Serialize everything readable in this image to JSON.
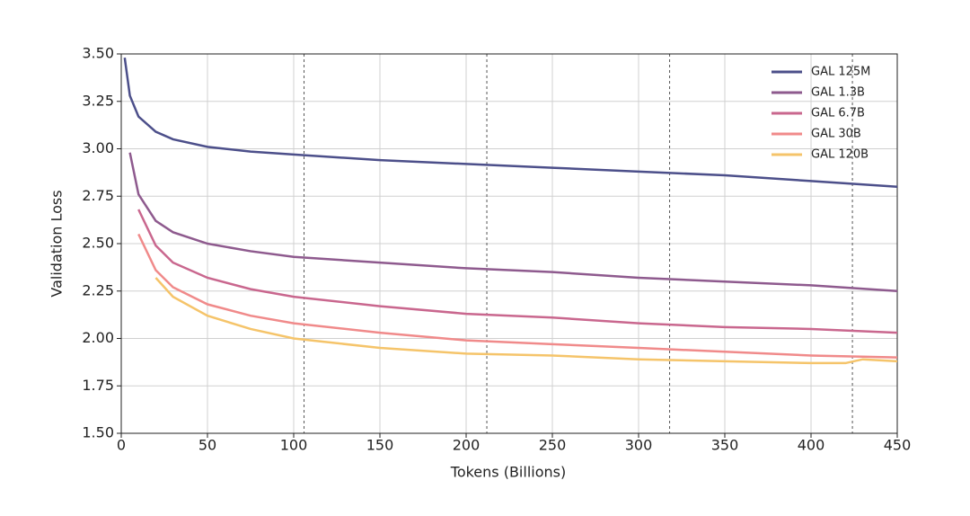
{
  "chart_data": {
    "type": "line",
    "x_label": "Tokens (Billions)",
    "y_label": "Validation Loss",
    "xlim": [
      0,
      450
    ],
    "xticks": [
      0,
      50,
      100,
      150,
      200,
      250,
      300,
      350,
      400,
      450
    ],
    "ylim": [
      1.5,
      3.5
    ],
    "yticks": [
      {
        "value": 1.5,
        "label": "1.50"
      },
      {
        "value": 1.75,
        "label": "1.75"
      },
      {
        "value": 2,
        "label": "2.00"
      },
      {
        "value": 2.25,
        "label": "2.25"
      },
      {
        "value": 2.5,
        "label": "2.50"
      },
      {
        "value": 2.75,
        "label": "2.75"
      },
      {
        "value": 3,
        "label": "3.00"
      },
      {
        "value": 3.25,
        "label": "3.25"
      },
      {
        "value": 3.5,
        "label": "3.50"
      }
    ],
    "grid": true,
    "legend": "upper right",
    "vlines": [
      106,
      212,
      318,
      424
    ],
    "series": [
      {
        "name": "GAL 125M",
        "color": "#4c4f8a",
        "x": [
          2,
          5,
          10,
          20,
          30,
          50,
          75,
          100,
          150,
          200,
          250,
          300,
          350,
          400,
          450
        ],
        "values": [
          3.48,
          3.28,
          3.17,
          3.09,
          3.05,
          3.01,
          2.985,
          2.97,
          2.94,
          2.92,
          2.9,
          2.88,
          2.86,
          2.83,
          2.8
        ]
      },
      {
        "name": "GAL 1.3B",
        "color": "#8e5a8e",
        "x": [
          5,
          10,
          20,
          30,
          50,
          75,
          100,
          150,
          200,
          250,
          300,
          350,
          400,
          450
        ],
        "values": [
          2.98,
          2.76,
          2.62,
          2.56,
          2.5,
          2.46,
          2.43,
          2.4,
          2.37,
          2.35,
          2.32,
          2.3,
          2.28,
          2.25
        ]
      },
      {
        "name": "GAL 6.7B",
        "color": "#c9678e",
        "x": [
          10,
          20,
          30,
          50,
          75,
          100,
          150,
          200,
          250,
          300,
          350,
          400,
          450
        ],
        "values": [
          2.68,
          2.49,
          2.4,
          2.32,
          2.26,
          2.22,
          2.17,
          2.13,
          2.11,
          2.08,
          2.06,
          2.05,
          2.03
        ]
      },
      {
        "name": "GAL 30B",
        "color": "#f08a8a",
        "x": [
          10,
          20,
          30,
          50,
          75,
          100,
          150,
          200,
          250,
          300,
          350,
          400,
          450
        ],
        "values": [
          2.55,
          2.36,
          2.27,
          2.18,
          2.12,
          2.08,
          2.03,
          1.99,
          1.97,
          1.95,
          1.93,
          1.91,
          1.9
        ]
      },
      {
        "name": "GAL 120B",
        "color": "#f5c46a",
        "x": [
          20,
          30,
          50,
          75,
          100,
          150,
          200,
          250,
          300,
          350,
          400,
          420,
          430,
          450
        ],
        "values": [
          2.32,
          2.22,
          2.12,
          2.05,
          2.0,
          1.95,
          1.92,
          1.91,
          1.89,
          1.88,
          1.87,
          1.87,
          1.89,
          1.88
        ]
      }
    ]
  }
}
